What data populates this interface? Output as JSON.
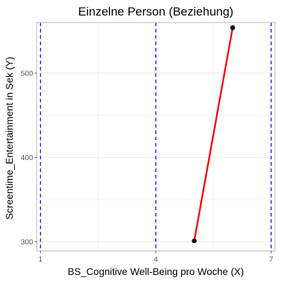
{
  "chart_data": {
    "type": "line",
    "title": "Einzelne Person (Beziehung)",
    "xlabel": "BS_Cognitive Well-Being pro Woche (X)",
    "ylabel": "Screentime_Entertainment in Sek (Y)",
    "xlim": [
      0.9,
      7.1
    ],
    "ylim": [
      289,
      560
    ],
    "x_ticks": [
      1,
      4,
      7
    ],
    "y_ticks": [
      300,
      400,
      500
    ],
    "grid": true,
    "series": [
      {
        "x": [
          5,
          6
        ],
        "y": [
          301,
          554
        ]
      }
    ],
    "reference_lines": [
      {
        "x": 1
      },
      {
        "x": 4
      },
      {
        "x": 7
      }
    ],
    "colors": {
      "series_line": "#ff0000",
      "points": "#000000",
      "reference_line": "#0000ff",
      "grid": "#ebebeb",
      "panel_border": "#b3b3b3",
      "tick_label": "#4d4d4d"
    }
  }
}
